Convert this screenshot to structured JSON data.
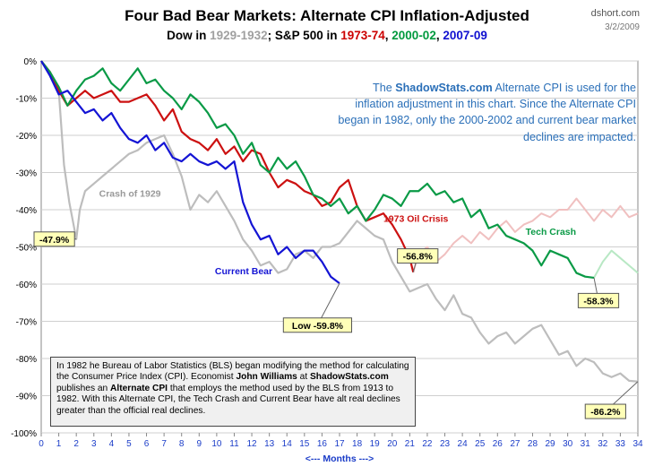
{
  "header": {
    "title": "Four Bad Bear Markets: Alternate CPI Inflation-Adjusted",
    "subtitle_parts": [
      {
        "text": "Dow in ",
        "color": "#000000"
      },
      {
        "text": "1929-1932",
        "color": "#a0a0a0"
      },
      {
        "text": "; S&P 500 in ",
        "color": "#000000"
      },
      {
        "text": "1973-74",
        "color": "#cc0000"
      },
      {
        "text": ", ",
        "color": "#000000"
      },
      {
        "text": "2000-02",
        "color": "#009a3e"
      },
      {
        "text": ", ",
        "color": "#000000"
      },
      {
        "text": "2007-09",
        "color": "#1010d0"
      }
    ],
    "site": "dshort.com",
    "date": "3/2/2009"
  },
  "callout": {
    "pre": "The ",
    "bold": "ShadowStats.com",
    "post": " Alternate CPI is used for the inflation adjustment in this chart. Since the Alternate CPI began in 1982, only the 2000-2002 and current bear market declines are impacted."
  },
  "note": [
    {
      "t": "In 1982 he Bureau of Labor Statistics (BLS) began modifying the method for calculating the Consumer Price Index (CPI).  Economist ",
      "b": false
    },
    {
      "t": "John Williams",
      "b": true
    },
    {
      "t": " at ",
      "b": false
    },
    {
      "t": "ShadowStats.com",
      "b": true
    },
    {
      "t": " publishes an ",
      "b": false
    },
    {
      "t": "Alternate CPI",
      "b": true
    },
    {
      "t": "  that employs the method used by the BLS from 1913 to 1982. With this Alternate CPI, the Tech Crash and Current Bear have alt real declines greater than the official real declines.",
      "b": false
    }
  ],
  "chart_data": {
    "type": "line",
    "title": "Four Bad Bear Markets: Alternate CPI Inflation-Adjusted",
    "xlabel": "<--- Months --->",
    "ylabel": "",
    "xlim": [
      0,
      34
    ],
    "ylim": [
      -100,
      0
    ],
    "x_ticks": [
      0,
      1,
      2,
      3,
      4,
      5,
      6,
      7,
      8,
      9,
      10,
      11,
      12,
      13,
      14,
      15,
      16,
      17,
      18,
      19,
      20,
      21,
      22,
      23,
      24,
      25,
      26,
      27,
      28,
      29,
      30,
      31,
      32,
      33,
      34
    ],
    "y_ticks": [
      0,
      -10,
      -20,
      -30,
      -40,
      -50,
      -60,
      -70,
      -80,
      -90,
      -100
    ],
    "y_tick_labels": [
      "0%",
      "-10%",
      "-20%",
      "-30%",
      "-40%",
      "-50%",
      "-60%",
      "-70%",
      "-80%",
      "-90%",
      "-100%"
    ],
    "grid": true,
    "series": [
      {
        "name": "Crash of 1929",
        "label": "Crash of 1929",
        "color": "#bdbdbd",
        "x": [
          0,
          0.5,
          1,
          1.3,
          1.6,
          2.0,
          2.2,
          2.5,
          3.0,
          3.5,
          4.0,
          4.5,
          5.0,
          5.5,
          6.0,
          6.5,
          7.0,
          7.5,
          8.0,
          8.5,
          9.0,
          9.5,
          10.0,
          10.5,
          11.0,
          11.5,
          12.0,
          12.5,
          13.0,
          13.5,
          14.0,
          14.5,
          15.0,
          15.5,
          16.0,
          16.5,
          17.0,
          17.5,
          18.0,
          18.5,
          19.0,
          19.5,
          20.0,
          20.5,
          21.0,
          21.5,
          22.0,
          22.5,
          23.0,
          23.5,
          24.0,
          24.5,
          25.0,
          25.5,
          26.0,
          26.5,
          27.0,
          27.5,
          28.0,
          28.5,
          29.0,
          29.5,
          30.0,
          30.5,
          31.0,
          31.5,
          32.0,
          32.5,
          33.0,
          33.5,
          34.0
        ],
        "y": [
          0,
          -3,
          -8,
          -28,
          -38,
          -47.9,
          -40,
          -35,
          -33,
          -31,
          -29,
          -27,
          -25,
          -24,
          -22,
          -21,
          -20,
          -25,
          -31,
          -40,
          -36,
          -38,
          -35,
          -39,
          -43,
          -48,
          -51,
          -55,
          -54,
          -57,
          -56,
          -52,
          -51,
          -53,
          -50,
          -50,
          -49,
          -46,
          -43,
          -45,
          -47,
          -48,
          -54,
          -58,
          -62,
          -61,
          -60,
          -64,
          -67,
          -63,
          -68,
          -69,
          -73,
          -76,
          -74,
          -73,
          -76,
          -74,
          -72,
          -71,
          -75,
          -79,
          -78,
          -82,
          -80,
          -81,
          -84,
          -85,
          -84,
          -86,
          -86.2
        ],
        "annotation": {
          "text": "-86.2%",
          "x": 34,
          "y": -86.2
        }
      },
      {
        "name": "1973 Oil Crisis",
        "label": "1973 Oil Crisis",
        "color": "#cc1111",
        "x": [
          0,
          0.5,
          1,
          1.5,
          2,
          2.5,
          3,
          3.5,
          4,
          4.5,
          5,
          5.5,
          6,
          6.5,
          7,
          7.5,
          8,
          8.5,
          9,
          9.5,
          10,
          10.5,
          11,
          11.5,
          12,
          12.5,
          13,
          13.5,
          14,
          14.5,
          15,
          15.5,
          16,
          16.5,
          17,
          17.5,
          18,
          18.5,
          19,
          19.5,
          20,
          20.5,
          21,
          21.2
        ],
        "y": [
          0,
          -3,
          -8,
          -12,
          -10,
          -8,
          -10,
          -9,
          -8,
          -11,
          -11,
          -10,
          -9,
          -12,
          -16,
          -13,
          -19,
          -21,
          -22,
          -24,
          -21,
          -25,
          -23,
          -27,
          -24,
          -25,
          -30,
          -34,
          -32,
          -33,
          -35,
          -36,
          -39,
          -38,
          -34,
          -32,
          -39,
          -43,
          -42,
          -41,
          -44,
          -48,
          -53,
          -56.8
        ],
        "annotation": {
          "text": "-56.8%",
          "x": 21.2,
          "y": -56.8
        }
      },
      {
        "name": "Tech Crash",
        "label": "Tech Crash",
        "color": "#0a9a46",
        "x": [
          0,
          0.5,
          1,
          1.5,
          2,
          2.5,
          3,
          3.5,
          4,
          4.5,
          5,
          5.5,
          6,
          6.5,
          7,
          7.5,
          8,
          8.5,
          9,
          9.5,
          10,
          10.5,
          11,
          11.5,
          12,
          12.5,
          13,
          13.5,
          14,
          14.5,
          15,
          15.5,
          16,
          16.5,
          17,
          17.5,
          18,
          18.5,
          19,
          19.5,
          20,
          20.5,
          21,
          21.5,
          22,
          22.5,
          23,
          23.5,
          24,
          24.5,
          25,
          25.5,
          26,
          26.5,
          27,
          27.5,
          28,
          28.5,
          29,
          29.5,
          30,
          30.5,
          31,
          31.5
        ],
        "y": [
          0,
          -3,
          -7,
          -12,
          -8,
          -5,
          -4,
          -2,
          -6,
          -8,
          -5,
          -2,
          -6,
          -5,
          -8,
          -10,
          -13,
          -9,
          -11,
          -14,
          -18,
          -17,
          -20,
          -25,
          -22,
          -28,
          -30,
          -26,
          -29,
          -27,
          -31,
          -36,
          -37,
          -39,
          -37,
          -41,
          -39,
          -43,
          -40,
          -36,
          -37,
          -39,
          -35,
          -35,
          -33,
          -36,
          -35,
          -38,
          -37,
          -42,
          -40,
          -45,
          -44,
          -47,
          -48,
          -49,
          -51,
          -55,
          -51,
          -52,
          -53,
          -57,
          -58,
          -58.3
        ],
        "annotation": {
          "text": "-58.3%",
          "x": 31.5,
          "y": -58.3
        }
      },
      {
        "name": "Current Bear",
        "label": "Current Bear",
        "color": "#1414d4",
        "x": [
          0,
          0.5,
          1,
          1.5,
          2,
          2.5,
          3,
          3.5,
          4,
          4.5,
          5,
          5.5,
          6,
          6.5,
          7,
          7.5,
          8,
          8.5,
          9,
          9.5,
          10,
          10.5,
          11,
          11.5,
          12,
          12.5,
          13,
          13.5,
          14,
          14.5,
          15,
          15.5,
          16,
          16.5,
          17
        ],
        "y": [
          0,
          -4,
          -9,
          -8,
          -11,
          -14,
          -13,
          -16,
          -14,
          -18,
          -21,
          -22,
          -20,
          -24,
          -22,
          -26,
          -27,
          -25,
          -27,
          -28,
          -27,
          -29,
          -27,
          -38,
          -44,
          -48,
          -47,
          -52,
          -50,
          -53,
          -51,
          -51,
          -54,
          -58,
          -59.8
        ],
        "annotation": {
          "text": "Low  -59.8%",
          "x": 17,
          "y": -59.8
        }
      }
    ],
    "faded_series": [
      {
        "color": "#f0c0c0",
        "x": [
          21.2,
          21.5,
          22,
          22.5,
          23,
          23.5,
          24,
          24.5,
          25,
          25.5,
          26,
          26.5,
          27,
          27.5,
          28,
          28.5,
          29,
          29.5,
          30,
          30.5,
          31,
          31.5,
          32,
          32.5,
          33,
          33.5,
          34
        ],
        "y": [
          -56.8,
          -52,
          -50,
          -54,
          -52,
          -49,
          -47,
          -49,
          -46,
          -48,
          -45,
          -43,
          -46,
          -44,
          -43,
          -41,
          -42,
          -40,
          -40,
          -37,
          -40,
          -43,
          -40,
          -42,
          -39,
          -42,
          -41
        ]
      },
      {
        "color": "#b8e8c4",
        "x": [
          31.5,
          32,
          32.5,
          33,
          33.5,
          34
        ],
        "y": [
          -58.3,
          -54,
          -51,
          -53,
          -55,
          -57
        ]
      }
    ],
    "left_annotation": {
      "text": "-47.9%",
      "y": -47.9
    }
  }
}
